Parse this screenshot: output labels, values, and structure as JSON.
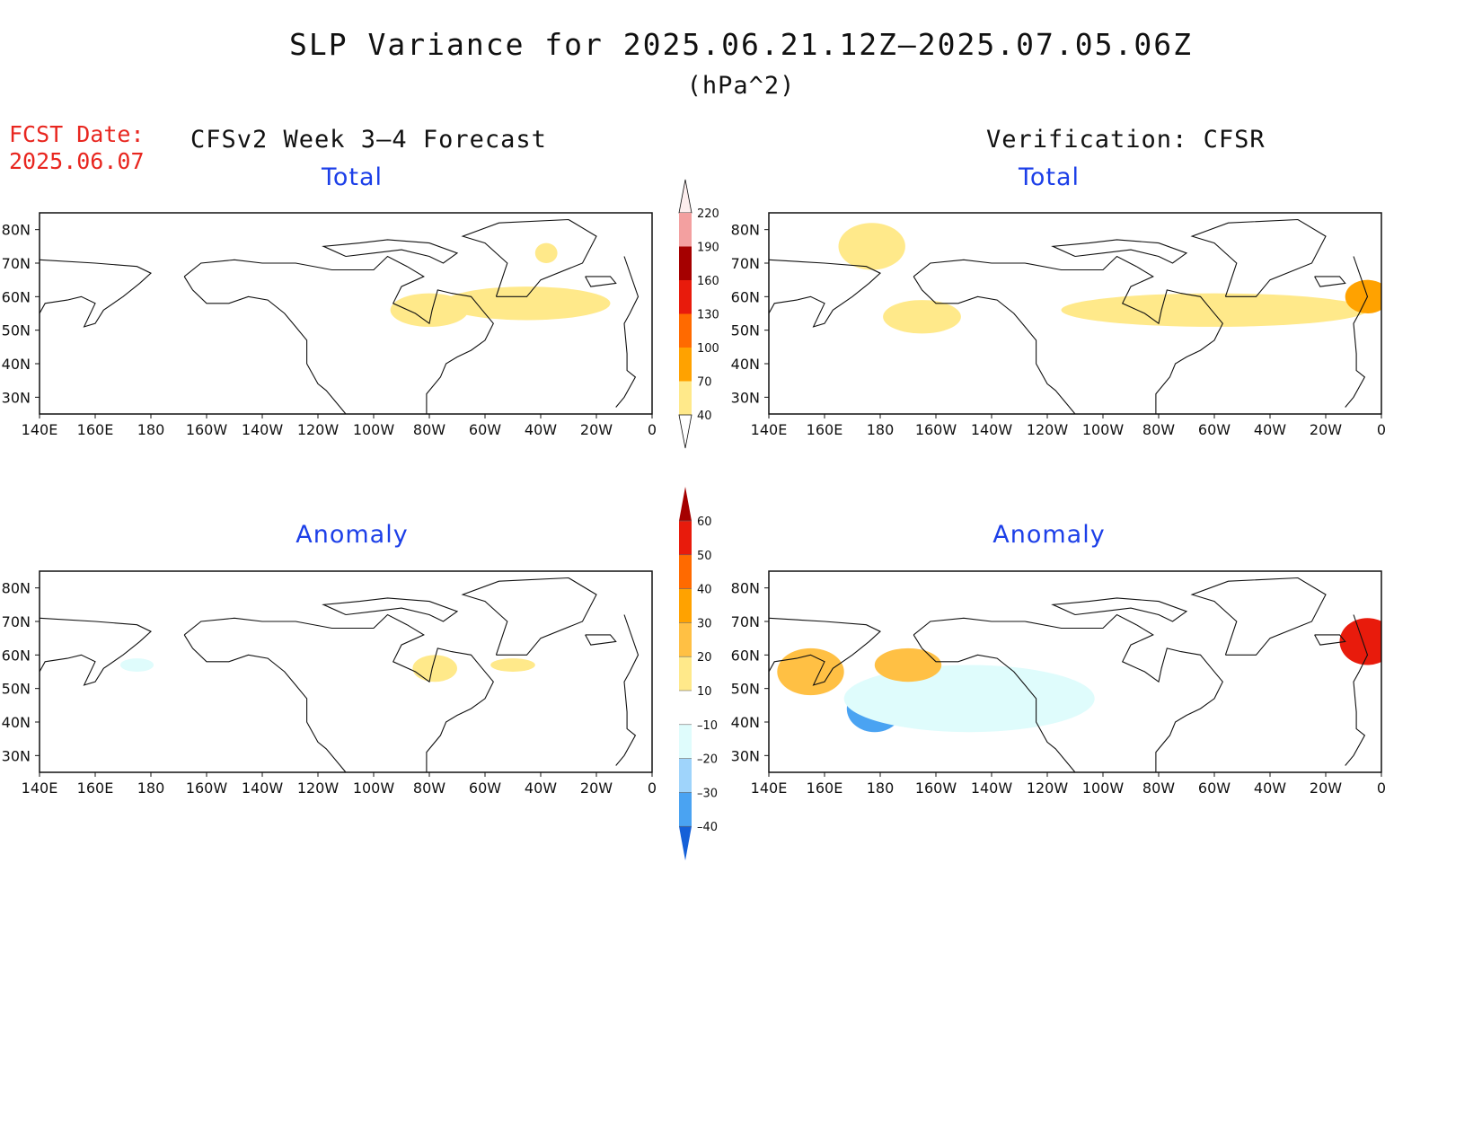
{
  "title": "SLP Variance for 2025.06.21.12Z–2025.07.05.06Z",
  "units": "(hPa^2)",
  "fcst": {
    "label": "FCST Date:",
    "date": "2025.06.07"
  },
  "left_header": "CFSv2 Week 3–4 Forecast",
  "right_header": "Verification: CFSR",
  "panels": {
    "forecast_total": {
      "title": "Total"
    },
    "verification_total": {
      "title": "Total"
    },
    "forecast_anomaly": {
      "title": "Anomaly"
    },
    "verification_anomaly": {
      "title": "Anomaly"
    }
  },
  "axes": {
    "lon_ticks": [
      "140E",
      "160E",
      "180",
      "160W",
      "140W",
      "120W",
      "100W",
      "80W",
      "60W",
      "40W",
      "20W",
      "0"
    ],
    "lat_ticks": [
      "80N",
      "70N",
      "60N",
      "50N",
      "40N",
      "30N"
    ]
  },
  "colorbars": {
    "total": {
      "labels": [
        "40",
        "70",
        "100",
        "130",
        "160",
        "190",
        "220"
      ],
      "colors": [
        "#ffe98a",
        "#ffa200",
        "#ff6a00",
        "#e81b0c",
        "#a50000",
        "#f3a0a0",
        "#fbd9d9"
      ]
    },
    "anomaly": {
      "labels": [
        "60",
        "50",
        "40",
        "30",
        "20",
        "10",
        "–10",
        "–20",
        "–30",
        "–40"
      ],
      "colors": [
        "#a50000",
        "#e81b0c",
        "#ff6a00",
        "#ffa200",
        "#ffc044",
        "#ffe98a",
        "#ffffff",
        "#dffcfc",
        "#9fd4fb",
        "#4aa3f2",
        "#1560d8",
        "#1560d8"
      ]
    }
  },
  "fields": {
    "forecast_total": [
      {
        "lon": -80,
        "lat": 56,
        "w": 14,
        "h": 5,
        "level": "40-70"
      },
      {
        "lon": -45,
        "lat": 58,
        "w": 30,
        "h": 5,
        "level": "40-70"
      },
      {
        "lon": -38,
        "lat": 73,
        "w": 4,
        "h": 3,
        "level": "40-70"
      }
    ],
    "verification_total": [
      {
        "lon": 177,
        "lat": 75,
        "w": 12,
        "h": 7,
        "level": "40-70"
      },
      {
        "lon": -165,
        "lat": 54,
        "w": 14,
        "h": 5,
        "level": "40-70"
      },
      {
        "lon": -60,
        "lat": 56,
        "w": 55,
        "h": 5,
        "level": "40-70"
      },
      {
        "lon": -5,
        "lat": 60,
        "w": 8,
        "h": 5,
        "level": "70-100"
      }
    ],
    "forecast_anomaly": [
      {
        "lon": -78,
        "lat": 56,
        "w": 8,
        "h": 4,
        "level": "10-20"
      },
      {
        "lon": -50,
        "lat": 57,
        "w": 8,
        "h": 2,
        "level": "10-20"
      },
      {
        "lon": 175,
        "lat": 57,
        "w": 6,
        "h": 2,
        "level": "-10--20"
      }
    ],
    "verification_anomaly": [
      {
        "lon": 178,
        "lat": 44,
        "w": 10,
        "h": 7,
        "level": "-30--40"
      },
      {
        "lon": -148,
        "lat": 47,
        "w": 45,
        "h": 10,
        "level": "-10--20"
      },
      {
        "lon": 155,
        "lat": 55,
        "w": 12,
        "h": 7,
        "level": "20-30"
      },
      {
        "lon": -170,
        "lat": 57,
        "w": 12,
        "h": 5,
        "level": "20-30"
      },
      {
        "lon": -5,
        "lat": 64,
        "w": 10,
        "h": 7,
        "level": "50-60"
      }
    ]
  }
}
